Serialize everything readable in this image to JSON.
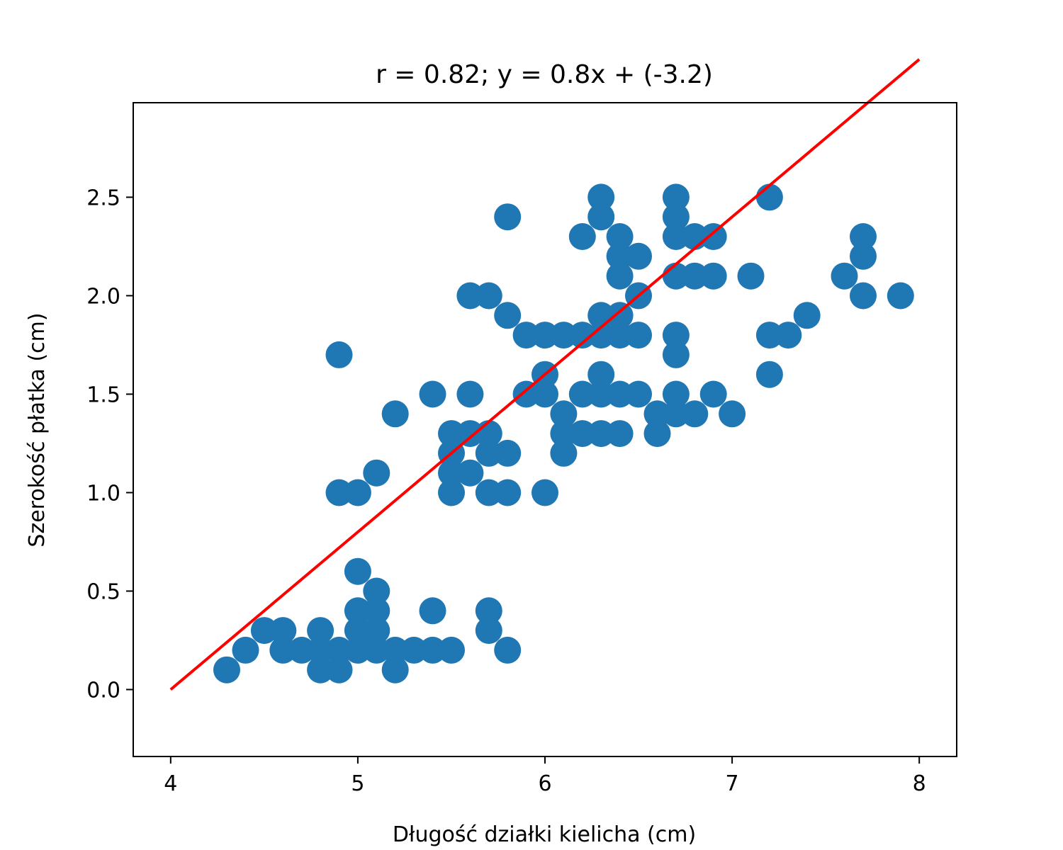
{
  "chart_data": {
    "type": "scatter",
    "title": "r = 0.82; y = 0.8x + (-3.2)",
    "xlabel": "Długość działki kielicha (cm)",
    "ylabel": "Szerokość płatka (cm)",
    "xlim": [
      3.8,
      8.2
    ],
    "ylim": [
      -0.34,
      2.98
    ],
    "xticks": [
      4,
      5,
      6,
      7,
      8
    ],
    "yticks": [
      0.0,
      0.5,
      1.0,
      1.5,
      2.0,
      2.5
    ],
    "xtick_labels": [
      "4",
      "5",
      "6",
      "7",
      "8"
    ],
    "ytick_labels": [
      "0.0",
      "0.5",
      "1.0",
      "1.5",
      "2.0",
      "2.5"
    ],
    "grid": false,
    "point_color": "#1f77b4",
    "line_color": "#ff0000",
    "fit_line": {
      "slope": 0.8,
      "intercept": -3.2,
      "x_range": [
        4,
        8
      ]
    },
    "points": [
      [
        4.3,
        0.1
      ],
      [
        4.4,
        0.2
      ],
      [
        4.5,
        0.3
      ],
      [
        4.6,
        0.3
      ],
      [
        4.6,
        0.2
      ],
      [
        4.7,
        0.2
      ],
      [
        4.8,
        0.3
      ],
      [
        4.8,
        0.2
      ],
      [
        4.8,
        0.1
      ],
      [
        4.9,
        0.2
      ],
      [
        4.9,
        0.1
      ],
      [
        5.0,
        0.2
      ],
      [
        5.0,
        0.3
      ],
      [
        5.0,
        0.4
      ],
      [
        5.0,
        0.6
      ],
      [
        5.1,
        0.2
      ],
      [
        5.1,
        0.3
      ],
      [
        5.1,
        0.4
      ],
      [
        5.1,
        0.5
      ],
      [
        5.2,
        0.2
      ],
      [
        5.2,
        0.1
      ],
      [
        5.3,
        0.2
      ],
      [
        5.4,
        0.2
      ],
      [
        5.4,
        0.4
      ],
      [
        5.5,
        0.2
      ],
      [
        5.7,
        0.3
      ],
      [
        5.7,
        0.4
      ],
      [
        5.8,
        0.2
      ],
      [
        4.9,
        1.7
      ],
      [
        4.9,
        1.0
      ],
      [
        5.0,
        1.0
      ],
      [
        5.1,
        1.1
      ],
      [
        5.2,
        1.4
      ],
      [
        5.4,
        1.5
      ],
      [
        5.5,
        1.0
      ],
      [
        5.5,
        1.1
      ],
      [
        5.5,
        1.2
      ],
      [
        5.5,
        1.3
      ],
      [
        5.6,
        1.1
      ],
      [
        5.6,
        1.3
      ],
      [
        5.6,
        1.5
      ],
      [
        5.6,
        2.0
      ],
      [
        5.7,
        1.0
      ],
      [
        5.7,
        1.2
      ],
      [
        5.7,
        1.3
      ],
      [
        5.7,
        2.0
      ],
      [
        5.8,
        1.0
      ],
      [
        5.8,
        1.2
      ],
      [
        5.8,
        1.9
      ],
      [
        5.8,
        2.4
      ],
      [
        5.9,
        1.5
      ],
      [
        5.9,
        1.8
      ],
      [
        6.0,
        1.0
      ],
      [
        6.0,
        1.5
      ],
      [
        6.0,
        1.6
      ],
      [
        6.0,
        1.8
      ],
      [
        6.1,
        1.2
      ],
      [
        6.1,
        1.3
      ],
      [
        6.1,
        1.4
      ],
      [
        6.1,
        1.8
      ],
      [
        6.2,
        1.3
      ],
      [
        6.2,
        1.5
      ],
      [
        6.2,
        1.8
      ],
      [
        6.2,
        2.3
      ],
      [
        6.3,
        1.3
      ],
      [
        6.3,
        1.5
      ],
      [
        6.3,
        1.6
      ],
      [
        6.3,
        1.8
      ],
      [
        6.3,
        1.9
      ],
      [
        6.3,
        2.4
      ],
      [
        6.3,
        2.5
      ],
      [
        6.4,
        1.3
      ],
      [
        6.4,
        1.5
      ],
      [
        6.4,
        1.8
      ],
      [
        6.4,
        1.9
      ],
      [
        6.4,
        2.1
      ],
      [
        6.4,
        2.2
      ],
      [
        6.4,
        2.3
      ],
      [
        6.5,
        1.5
      ],
      [
        6.5,
        1.8
      ],
      [
        6.5,
        2.0
      ],
      [
        6.5,
        2.2
      ],
      [
        6.6,
        1.3
      ],
      [
        6.6,
        1.4
      ],
      [
        6.7,
        1.4
      ],
      [
        6.7,
        1.5
      ],
      [
        6.7,
        1.7
      ],
      [
        6.7,
        1.8
      ],
      [
        6.7,
        2.1
      ],
      [
        6.7,
        2.3
      ],
      [
        6.7,
        2.4
      ],
      [
        6.7,
        2.5
      ],
      [
        6.8,
        1.4
      ],
      [
        6.8,
        2.1
      ],
      [
        6.8,
        2.3
      ],
      [
        6.9,
        1.5
      ],
      [
        6.9,
        2.1
      ],
      [
        6.9,
        2.3
      ],
      [
        7.0,
        1.4
      ],
      [
        7.1,
        2.1
      ],
      [
        7.2,
        1.6
      ],
      [
        7.2,
        1.8
      ],
      [
        7.2,
        2.5
      ],
      [
        7.3,
        1.8
      ],
      [
        7.4,
        1.9
      ],
      [
        7.6,
        2.1
      ],
      [
        7.7,
        2.0
      ],
      [
        7.7,
        2.2
      ],
      [
        7.7,
        2.3
      ],
      [
        7.9,
        2.0
      ]
    ]
  }
}
